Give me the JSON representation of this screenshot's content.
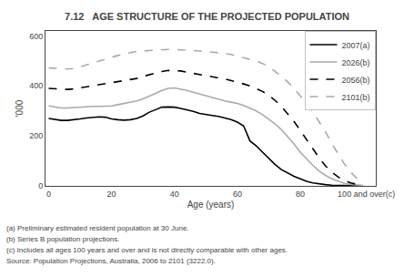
{
  "chart_data": {
    "type": "line",
    "title": "7.12   AGE STRUCTURE OF THE PROJECTED POPULATION",
    "xlabel": "Age (years)",
    "ylabel": "'000",
    "x": [
      0,
      2,
      4,
      6,
      8,
      10,
      12,
      14,
      16,
      18,
      20,
      22,
      24,
      26,
      28,
      30,
      32,
      34,
      36,
      38,
      40,
      42,
      44,
      46,
      48,
      50,
      52,
      54,
      56,
      58,
      60,
      62,
      64,
      66,
      68,
      70,
      72,
      74,
      76,
      78,
      80,
      82,
      84,
      86,
      88,
      90,
      92,
      94,
      96,
      98,
      100
    ],
    "xlim": [
      -1,
      104
    ],
    "xticks": [
      0,
      20,
      40,
      60,
      80,
      {
        "value": 101,
        "label": "100 and over(c)"
      }
    ],
    "ylim": [
      0,
      620
    ],
    "yticks": [
      0,
      200,
      400,
      600
    ],
    "grid": false,
    "legend": "upper right",
    "series": [
      {
        "name": "2007(a)",
        "color": "#000000",
        "line_style": "solid",
        "values": [
          270,
          265,
          262,
          262,
          264,
          268,
          272,
          275,
          276,
          275,
          268,
          265,
          263,
          265,
          270,
          280,
          295,
          305,
          315,
          316,
          315,
          310,
          305,
          298,
          290,
          285,
          282,
          278,
          272,
          265,
          255,
          240,
          180,
          160,
          135,
          110,
          85,
          65,
          50,
          38,
          28,
          18,
          12,
          8,
          5,
          3,
          2,
          1,
          1,
          0,
          0
        ]
      },
      {
        "name": "2026(b)",
        "color": "#aaaaaa",
        "line_style": "solid",
        "values": [
          320,
          316,
          312,
          312,
          314,
          316,
          318,
          318,
          318,
          318,
          320,
          325,
          330,
          335,
          340,
          348,
          358,
          370,
          382,
          390,
          392,
          388,
          382,
          375,
          368,
          360,
          352,
          345,
          340,
          335,
          330,
          322,
          312,
          300,
          285,
          268,
          248,
          225,
          198,
          168,
          135,
          108,
          82,
          60,
          42,
          28,
          18,
          10,
          6,
          3,
          2
        ]
      },
      {
        "name": "2056(b)",
        "color": "#000000",
        "line_style": "dashed",
        "values": [
          390,
          388,
          386,
          386,
          388,
          392,
          396,
          400,
          404,
          408,
          412,
          416,
          420,
          425,
          430,
          438,
          445,
          452,
          458,
          462,
          462,
          460,
          455,
          450,
          445,
          440,
          436,
          432,
          428,
          422,
          415,
          408,
          400,
          390,
          378,
          362,
          342,
          318,
          290,
          258,
          222,
          185,
          148,
          112,
          80,
          55,
          36,
          22,
          12,
          6,
          4
        ]
      },
      {
        "name": "2101(b)",
        "color": "#aaaaaa",
        "line_style": "dashed",
        "values": [
          472,
          470,
          468,
          468,
          470,
          476,
          484,
          492,
          500,
          508,
          516,
          522,
          528,
          534,
          538,
          540,
          542,
          544,
          545,
          546,
          546,
          545,
          544,
          542,
          540,
          538,
          536,
          534,
          530,
          526,
          520,
          514,
          508,
          500,
          490,
          476,
          458,
          438,
          416,
          390,
          362,
          330,
          296,
          258,
          216,
          170,
          128,
          88,
          55,
          30,
          18
        ]
      }
    ],
    "annotations": [
      "(a) Preliminary estimated resident population at 30 June.",
      "(b) Series B population projections.",
      "(c) Includes all ages 100 years and over and is not directly comparable with other ages.",
      "Source: Population Projections, Australia, 2006 to 2101 (3222.0)."
    ]
  }
}
